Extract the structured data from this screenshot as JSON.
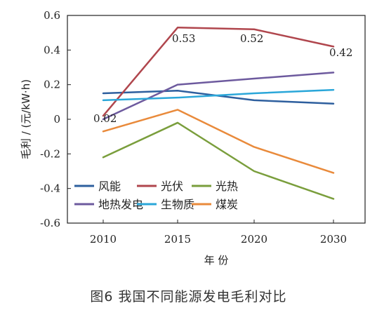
{
  "caption": "图6 我国不同能源发电毛利对比",
  "chart_data": {
    "type": "line",
    "categories": [
      "2010",
      "2015",
      "2020",
      "2030"
    ],
    "xlabel": "年 份",
    "ylabel": "毛利 / (元/kW·h)",
    "ylim": [
      -0.6,
      0.6
    ],
    "yticks": [
      -0.6,
      -0.4,
      -0.2,
      0,
      0.2,
      0.4,
      0.6
    ],
    "ytick_labels": [
      "-0.6",
      "-0.4",
      "-0.2",
      "0",
      "0.2",
      "0.4",
      "0.6"
    ],
    "grid": false,
    "legend_position": "lower-left",
    "series": [
      {
        "name": "风能",
        "color": "#2e5f9e",
        "values": [
          0.15,
          0.165,
          0.11,
          0.09
        ]
      },
      {
        "name": "光伏",
        "color": "#b0464d",
        "values": [
          0.02,
          0.53,
          0.52,
          0.42
        ]
      },
      {
        "name": "光热",
        "color": "#7a9e3c",
        "values": [
          -0.22,
          -0.02,
          -0.3,
          -0.46
        ]
      },
      {
        "name": "地热发电",
        "color": "#6d5a9e",
        "values": [
          0.0,
          0.2,
          0.235,
          0.27
        ]
      },
      {
        "name": "生物质",
        "color": "#2ba7d9",
        "values": [
          0.11,
          0.125,
          0.15,
          0.17
        ]
      },
      {
        "name": "煤炭",
        "color": "#e98a3b",
        "values": [
          -0.07,
          0.055,
          -0.16,
          -0.31
        ]
      }
    ],
    "annotations": [
      {
        "series": "光伏",
        "category": "2010",
        "text": "0.02"
      },
      {
        "series": "光伏",
        "category": "2015",
        "text": "0.53"
      },
      {
        "series": "光伏",
        "category": "2020",
        "text": "0.52"
      },
      {
        "series": "光伏",
        "category": "2030",
        "text": "0.42"
      }
    ]
  }
}
